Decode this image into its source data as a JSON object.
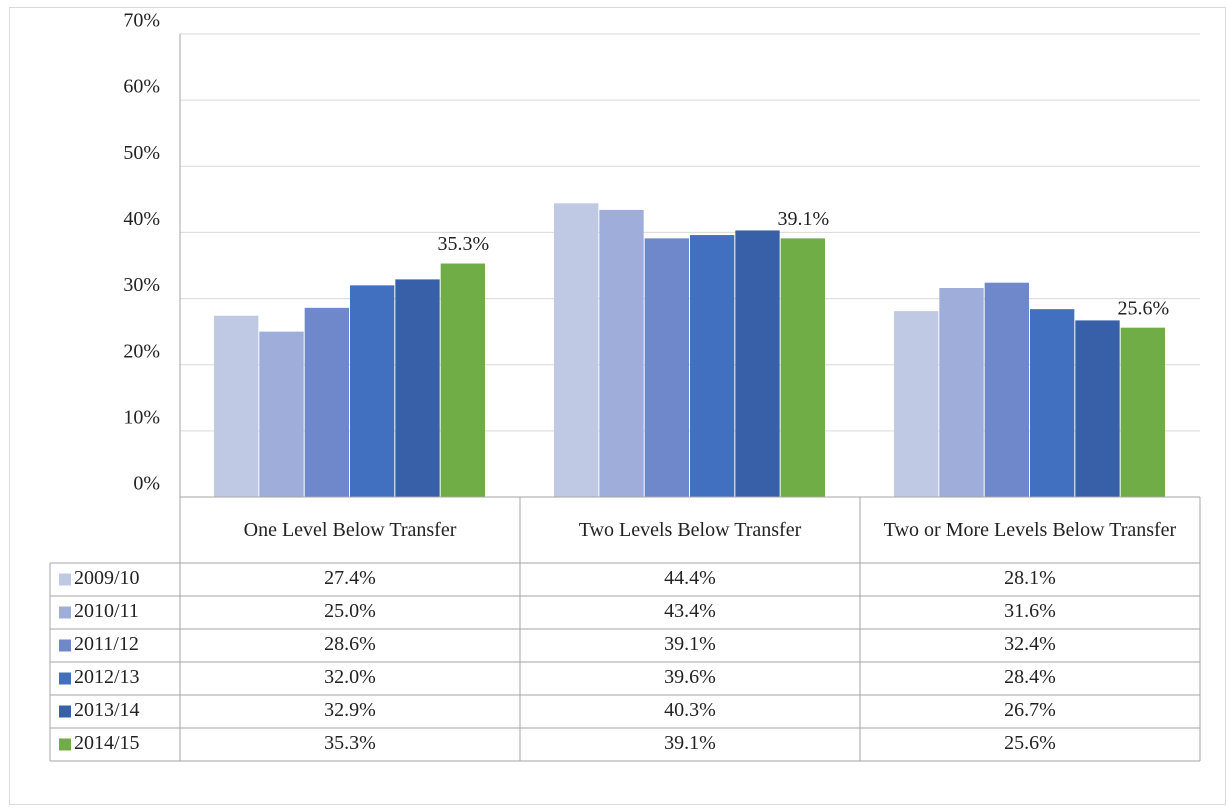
{
  "chart_data": {
    "type": "bar",
    "categories": [
      "One Level Below Transfer",
      "Two Levels Below Transfer",
      "Two or More Levels Below Transfer"
    ],
    "series": [
      {
        "name": "2009/10",
        "color": "#c0c9e4",
        "values": [
          27.4,
          44.4,
          28.1
        ],
        "value_labels": [
          "27.4%",
          "44.4%",
          "28.1%"
        ]
      },
      {
        "name": "2010/11",
        "color": "#9eadd9",
        "values": [
          25.0,
          43.4,
          31.6
        ],
        "value_labels": [
          "25.0%",
          "43.4%",
          "31.6%"
        ]
      },
      {
        "name": "2011/12",
        "color": "#6f88cb",
        "values": [
          28.6,
          39.1,
          32.4
        ],
        "value_labels": [
          "28.6%",
          "39.1%",
          "32.4%"
        ]
      },
      {
        "name": "2012/13",
        "color": "#4270c0",
        "values": [
          32.0,
          39.6,
          28.4
        ],
        "value_labels": [
          "32.0%",
          "39.6%",
          "28.4%"
        ]
      },
      {
        "name": "2013/14",
        "color": "#3860a8",
        "values": [
          32.9,
          40.3,
          26.7
        ],
        "value_labels": [
          "32.9%",
          "40.3%",
          "26.7%"
        ]
      },
      {
        "name": "2014/15",
        "color": "#70ad47",
        "values": [
          35.3,
          39.1,
          25.6
        ],
        "value_labels": [
          "35.3%",
          "39.1%",
          "25.6%"
        ],
        "labels": true
      }
    ],
    "ylim": [
      0,
      70
    ],
    "yticks": [
      {
        "value": 0,
        "label": "0%"
      },
      {
        "value": 10,
        "label": "10%"
      },
      {
        "value": 20,
        "label": "20%"
      },
      {
        "value": 30,
        "label": "30%"
      },
      {
        "value": 40,
        "label": "40%"
      },
      {
        "value": 50,
        "label": "50%"
      },
      {
        "value": 60,
        "label": "60%"
      },
      {
        "value": 70,
        "label": "70%"
      }
    ],
    "grid": true,
    "data_table": true
  }
}
